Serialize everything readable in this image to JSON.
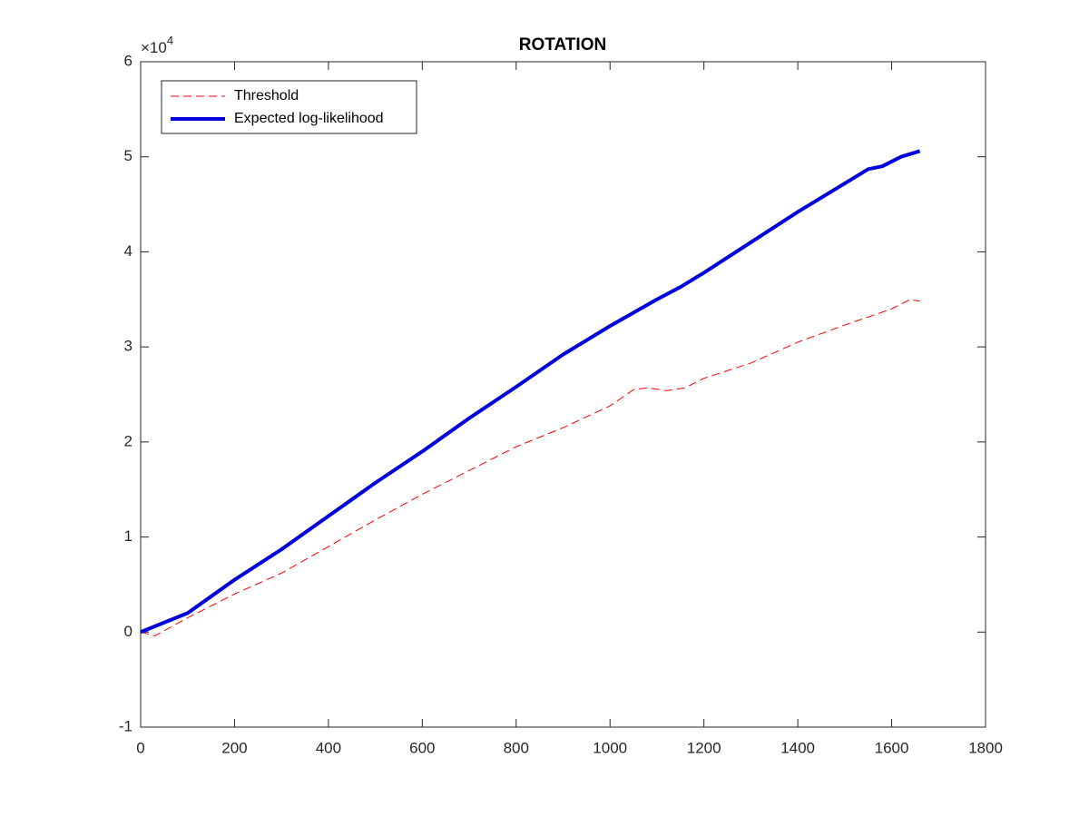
{
  "chart_data": {
    "type": "line",
    "title": "ROTATION",
    "y_multiplier": {
      "base": "×10",
      "exponent": "4"
    },
    "xlim": [
      0,
      1800
    ],
    "xticks": [
      0,
      200,
      400,
      600,
      800,
      1000,
      1200,
      1400,
      1600,
      1800
    ],
    "ylim": [
      -1,
      6
    ],
    "yticks": [
      -1,
      0,
      1,
      2,
      3,
      4,
      5,
      6
    ],
    "legend": "upper left",
    "grid": false,
    "series": [
      {
        "name": "Threshold",
        "color": "#ff0000",
        "style": "dashed",
        "x": [
          0,
          30,
          100,
          200,
          300,
          400,
          500,
          600,
          700,
          800,
          900,
          1000,
          1050,
          1080,
          1120,
          1160,
          1200,
          1300,
          1400,
          1500,
          1600,
          1640,
          1660
        ],
        "values": [
          0,
          -0.04,
          0.15,
          0.4,
          0.62,
          0.9,
          1.18,
          1.45,
          1.7,
          1.95,
          2.15,
          2.38,
          2.55,
          2.57,
          2.54,
          2.57,
          2.67,
          2.83,
          3.05,
          3.23,
          3.4,
          3.5,
          3.48
        ]
      },
      {
        "name": "Expected log-likelihood",
        "color": "#0000dd",
        "style": "solid",
        "x": [
          0,
          100,
          200,
          300,
          400,
          500,
          600,
          700,
          800,
          900,
          1000,
          1100,
          1150,
          1200,
          1300,
          1400,
          1500,
          1550,
          1580,
          1620,
          1660
        ],
        "values": [
          0,
          0.2,
          0.55,
          0.87,
          1.22,
          1.57,
          1.9,
          2.25,
          2.58,
          2.92,
          3.22,
          3.5,
          3.63,
          3.78,
          4.1,
          4.42,
          4.72,
          4.87,
          4.9,
          5.0,
          5.06
        ]
      }
    ]
  }
}
